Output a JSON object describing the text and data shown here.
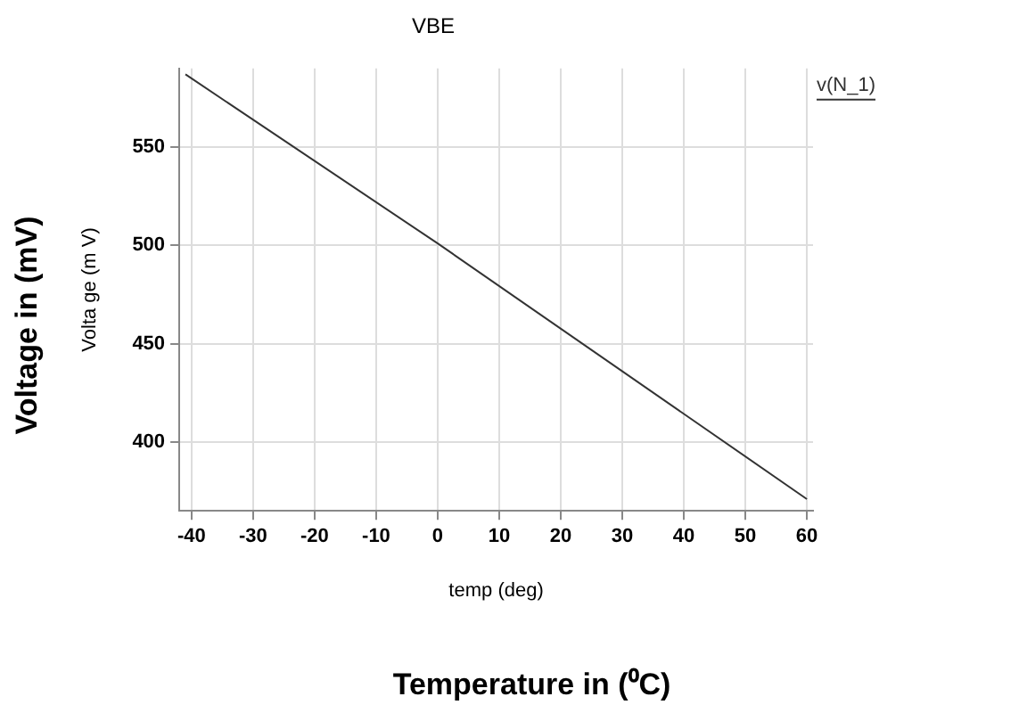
{
  "chart_data": {
    "type": "line",
    "title": "VBE",
    "xlabel": "temp (deg)",
    "ylabel": "Volta ge (m V)",
    "annotations": [
      "Voltage in (mV)",
      "Temperature in (⁰C)"
    ],
    "x": [
      -41,
      0,
      60
    ],
    "series": [
      {
        "name": "v(N_1)",
        "color": "#333333",
        "values": [
          587,
          501,
          371
        ]
      }
    ],
    "xlim": [
      -42,
      61
    ],
    "xticks": [
      -40,
      -30,
      -20,
      -10,
      0,
      10,
      20,
      30,
      40,
      50,
      60
    ],
    "ylim": [
      365,
      590
    ],
    "yticks": [
      400,
      450,
      500,
      550
    ],
    "grid": true,
    "legend": "top right",
    "marker": "none",
    "line_style": "solid"
  }
}
